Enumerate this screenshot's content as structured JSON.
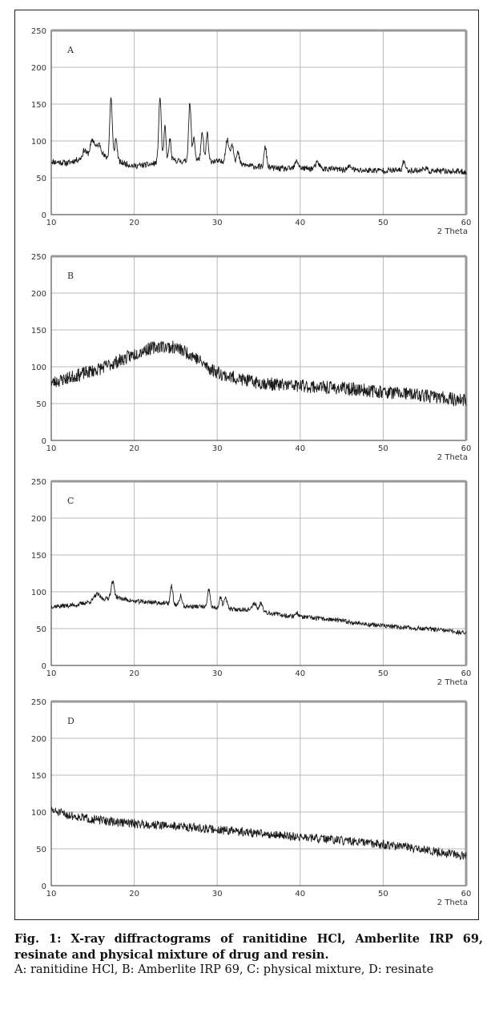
{
  "figure": {
    "caption_title": "Fig. 1: X-ray diffractograms of ranitidine HCl, Amberlite IRP 69, resinate and physical mixture of drug and resin.",
    "caption_legend": "A: ranitidine HCl, B: Amberlite IRP 69, C: physical mixture, D: resinate"
  },
  "chart_data": [
    {
      "type": "line",
      "panel_label": "A",
      "xlabel": "2 Theta",
      "ylabel": "",
      "xlim": [
        10,
        60
      ],
      "ylim": [
        0,
        250
      ],
      "xticks": [
        "10",
        "20",
        "30",
        "40",
        "50",
        "60"
      ],
      "yticks": [
        "0",
        "50",
        "100",
        "150",
        "200",
        "250"
      ],
      "grid": true,
      "series": [
        {
          "baseline": [
            [
              10,
              72
            ],
            [
              12,
              70
            ],
            [
              14,
              78
            ],
            [
              16,
              80
            ],
            [
              18,
              72
            ],
            [
              20,
              66
            ],
            [
              22,
              68
            ],
            [
              24,
              75
            ],
            [
              26,
              72
            ],
            [
              28,
              75
            ],
            [
              30,
              72
            ],
            [
              32,
              70
            ],
            [
              34,
              66
            ],
            [
              36,
              64
            ],
            [
              38,
              62
            ],
            [
              40,
              63
            ],
            [
              42,
              62
            ],
            [
              44,
              62
            ],
            [
              46,
              60
            ],
            [
              48,
              60
            ],
            [
              50,
              60
            ],
            [
              52,
              60
            ],
            [
              54,
              60
            ],
            [
              56,
              59
            ],
            [
              58,
              59
            ],
            [
              60,
              58
            ]
          ],
          "peaks": [
            [
              14,
              10,
              0.2
            ],
            [
              15,
              22,
              0.3
            ],
            [
              15.8,
              15,
              0.25
            ],
            [
              17.2,
              85,
              0.15
            ],
            [
              17.8,
              30,
              0.15
            ],
            [
              23.1,
              88,
              0.15
            ],
            [
              23.7,
              45,
              0.12
            ],
            [
              24.3,
              28,
              0.12
            ],
            [
              26.7,
              78,
              0.15
            ],
            [
              27.2,
              32,
              0.12
            ],
            [
              28.2,
              35,
              0.15
            ],
            [
              28.8,
              38,
              0.12
            ],
            [
              31.2,
              30,
              0.2
            ],
            [
              31.8,
              25,
              0.2
            ],
            [
              32.5,
              15,
              0.15
            ],
            [
              35.8,
              28,
              0.15
            ],
            [
              39.6,
              10,
              0.2
            ],
            [
              42.1,
              8,
              0.25
            ],
            [
              46,
              5,
              0.3
            ],
            [
              52.5,
              13,
              0.15
            ],
            [
              55,
              4,
              0.2
            ]
          ],
          "noise": 4,
          "seed": 11
        }
      ]
    },
    {
      "type": "line",
      "panel_label": "B",
      "xlabel": "2 Theta",
      "ylabel": "",
      "xlim": [
        10,
        60
      ],
      "ylim": [
        0,
        250
      ],
      "xticks": [
        "10",
        "20",
        "30",
        "40",
        "50",
        "60"
      ],
      "yticks": [
        "0",
        "50",
        "100",
        "150",
        "200",
        "250"
      ],
      "grid": true,
      "series": [
        {
          "baseline": [
            [
              10,
              78
            ],
            [
              13,
              88
            ],
            [
              16,
              98
            ],
            [
              19,
              112
            ],
            [
              21,
              122
            ],
            [
              23,
              128
            ],
            [
              25,
              126
            ],
            [
              27,
              116
            ],
            [
              29,
              98
            ],
            [
              31,
              88
            ],
            [
              34,
              80
            ],
            [
              37,
              76
            ],
            [
              40,
              74
            ],
            [
              43,
              72
            ],
            [
              46,
              70
            ],
            [
              50,
              66
            ],
            [
              54,
              62
            ],
            [
              58,
              57
            ],
            [
              60,
              54
            ]
          ],
          "peaks": [],
          "noise": 9,
          "seed": 23
        }
      ]
    },
    {
      "type": "line",
      "panel_label": "C",
      "xlabel": "2 Theta",
      "ylabel": "",
      "xlim": [
        10,
        60
      ],
      "ylim": [
        0,
        250
      ],
      "xticks": [
        "10",
        "20",
        "30",
        "40",
        "50",
        "60"
      ],
      "yticks": [
        "0",
        "50",
        "100",
        "150",
        "200",
        "250"
      ],
      "grid": true,
      "series": [
        {
          "baseline": [
            [
              10,
              80
            ],
            [
              13,
              82
            ],
            [
              16,
              90
            ],
            [
              18,
              92
            ],
            [
              20,
              87
            ],
            [
              22,
              86
            ],
            [
              24,
              84
            ],
            [
              26,
              80
            ],
            [
              28,
              80
            ],
            [
              30,
              78
            ],
            [
              32,
              76
            ],
            [
              34,
              76
            ],
            [
              36,
              72
            ],
            [
              38,
              68
            ],
            [
              40,
              66
            ],
            [
              44,
              62
            ],
            [
              48,
              56
            ],
            [
              52,
              52
            ],
            [
              56,
              49
            ],
            [
              60,
              44
            ]
          ],
          "peaks": [
            [
              15.5,
              8,
              0.3
            ],
            [
              17.4,
              22,
              0.2
            ],
            [
              24.5,
              25,
              0.15
            ],
            [
              25.6,
              14,
              0.15
            ],
            [
              29,
              24,
              0.15
            ],
            [
              30.4,
              14,
              0.15
            ],
            [
              31,
              14,
              0.2
            ],
            [
              34.5,
              10,
              0.2
            ],
            [
              35.3,
              12,
              0.2
            ],
            [
              39.6,
              5,
              0.2
            ]
          ],
          "noise": 3,
          "seed": 37
        }
      ]
    },
    {
      "type": "line",
      "panel_label": "D",
      "xlabel": "2 Theta",
      "ylabel": "",
      "xlim": [
        10,
        60
      ],
      "ylim": [
        0,
        250
      ],
      "xticks": [
        "10",
        "20",
        "30",
        "40",
        "50",
        "60"
      ],
      "yticks": [
        "0",
        "50",
        "100",
        "150",
        "200",
        "250"
      ],
      "grid": true,
      "series": [
        {
          "baseline": [
            [
              10,
              102
            ],
            [
              12,
              96
            ],
            [
              15,
              90
            ],
            [
              18,
              86
            ],
            [
              22,
              83
            ],
            [
              26,
              80
            ],
            [
              30,
              76
            ],
            [
              34,
              72
            ],
            [
              38,
              68
            ],
            [
              42,
              64
            ],
            [
              46,
              60
            ],
            [
              50,
              56
            ],
            [
              54,
              50
            ],
            [
              58,
              44
            ],
            [
              60,
              40
            ]
          ],
          "peaks": [],
          "noise": 6,
          "seed": 51
        }
      ]
    }
  ]
}
